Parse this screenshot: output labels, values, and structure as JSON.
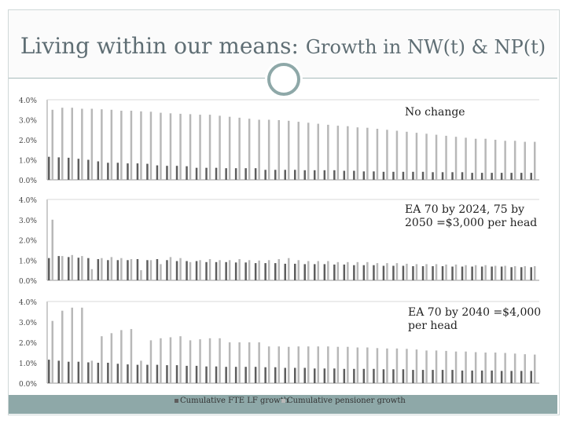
{
  "slide": {
    "title_part1": "Living within our means:",
    "title_part2": "Growth in NW(t) & NP(t)"
  },
  "colors": {
    "lf": "#5e5e5e",
    "pens": "#b8b8b8",
    "accent": "#8ea8a8"
  },
  "legend": {
    "lf_label": "Cumulative FTE LF growth",
    "pens_label": "Cumulative pensioner growth"
  },
  "chart_data": [
    {
      "type": "bar",
      "annotation": "No change",
      "ylim": [
        0,
        4.0
      ],
      "ytick_labels": [
        "4.0%",
        "3.0%",
        "2.0%",
        "1.0%",
        "0.0%"
      ],
      "series": [
        {
          "name": "Cumulative FTE LF growth",
          "values": [
            1.15,
            1.12,
            1.1,
            1.05,
            1.0,
            0.92,
            0.85,
            0.85,
            0.82,
            0.82,
            0.8,
            0.72,
            0.7,
            0.7,
            0.68,
            0.6,
            0.6,
            0.6,
            0.58,
            0.58,
            0.58,
            0.58,
            0.5,
            0.5,
            0.5,
            0.5,
            0.48,
            0.48,
            0.48,
            0.48,
            0.45,
            0.45,
            0.42,
            0.42,
            0.4,
            0.4,
            0.4,
            0.4,
            0.4,
            0.38,
            0.38,
            0.38,
            0.38,
            0.35,
            0.35,
            0.35,
            0.35,
            0.35,
            0.35,
            0.35
          ]
        },
        {
          "name": "Cumulative pensioner growth",
          "values": [
            3.5,
            3.6,
            3.6,
            3.55,
            3.55,
            3.52,
            3.5,
            3.45,
            3.45,
            3.42,
            3.4,
            3.35,
            3.32,
            3.3,
            3.28,
            3.25,
            3.25,
            3.2,
            3.15,
            3.1,
            3.05,
            3.0,
            3.0,
            2.98,
            2.95,
            2.9,
            2.85,
            2.8,
            2.75,
            2.7,
            2.68,
            2.62,
            2.6,
            2.55,
            2.5,
            2.45,
            2.4,
            2.35,
            2.3,
            2.25,
            2.2,
            2.15,
            2.1,
            2.05,
            2.05,
            2.0,
            1.95,
            1.95,
            1.9,
            1.9
          ]
        }
      ]
    },
    {
      "type": "bar",
      "annotation": "EA 70 by 2024, 75 by 2050 =$3,000 per head",
      "ylim": [
        0,
        4.0
      ],
      "ytick_labels": [
        "4.0%",
        "3.0%",
        "2.0%",
        "1.0%",
        "0.0%"
      ],
      "series": [
        {
          "name": "Cumulative FTE LF growth",
          "values": [
            1.1,
            1.2,
            1.15,
            1.12,
            1.1,
            1.05,
            1.0,
            1.0,
            1.0,
            1.05,
            1.0,
            1.05,
            1.0,
            0.95,
            0.95,
            0.95,
            0.9,
            0.9,
            0.9,
            0.88,
            0.88,
            0.85,
            0.85,
            0.85,
            0.82,
            0.82,
            0.8,
            0.8,
            0.8,
            0.78,
            0.78,
            0.75,
            0.75,
            0.75,
            0.72,
            0.72,
            0.72,
            0.7,
            0.7,
            0.7,
            0.7,
            0.68,
            0.68,
            0.68,
            0.68,
            0.68,
            0.68,
            0.65,
            0.65,
            0.65
          ]
        },
        {
          "name": "Cumulative pensioner growth",
          "values": [
            3.0,
            1.2,
            1.25,
            1.2,
            0.55,
            1.1,
            1.15,
            1.1,
            1.05,
            0.5,
            1.0,
            0.8,
            1.15,
            1.1,
            0.9,
            1.0,
            1.05,
            1.0,
            1.0,
            1.05,
            1.0,
            0.98,
            1.0,
            1.05,
            1.1,
            1.0,
            0.95,
            0.95,
            0.95,
            0.9,
            0.9,
            0.9,
            0.9,
            0.85,
            0.85,
            0.85,
            0.82,
            0.8,
            0.8,
            0.8,
            0.78,
            0.78,
            0.75,
            0.75,
            0.75,
            0.72,
            0.72,
            0.7,
            0.7,
            0.7
          ]
        }
      ]
    },
    {
      "type": "bar",
      "annotation": "EA 70 by 2040 =$4,000 per head",
      "ylim": [
        0,
        4.0
      ],
      "ytick_labels": [
        "4.0%",
        "3.0%",
        "2.0%",
        "1.0%",
        "0.0%"
      ],
      "series": [
        {
          "name": "Cumulative FTE LF growth",
          "values": [
            1.15,
            1.1,
            1.05,
            1.05,
            1.02,
            1.0,
            1.0,
            0.95,
            0.92,
            0.9,
            0.9,
            0.9,
            0.88,
            0.88,
            0.85,
            0.85,
            0.82,
            0.82,
            0.8,
            0.8,
            0.8,
            0.8,
            0.78,
            0.78,
            0.75,
            0.75,
            0.75,
            0.72,
            0.72,
            0.72,
            0.7,
            0.7,
            0.7,
            0.7,
            0.68,
            0.68,
            0.68,
            0.65,
            0.65,
            0.65,
            0.65,
            0.65,
            0.62,
            0.62,
            0.62,
            0.62,
            0.6,
            0.6,
            0.6,
            0.6
          ]
        },
        {
          "name": "Cumulative pensioner growth",
          "values": [
            3.05,
            3.55,
            3.7,
            3.7,
            1.1,
            2.3,
            2.45,
            2.6,
            2.65,
            1.1,
            2.1,
            2.2,
            2.25,
            2.3,
            2.1,
            2.15,
            2.2,
            2.2,
            2.0,
            2.0,
            2.0,
            2.0,
            1.8,
            1.8,
            1.78,
            1.8,
            1.8,
            1.8,
            1.8,
            1.78,
            1.78,
            1.75,
            1.75,
            1.72,
            1.7,
            1.7,
            1.68,
            1.65,
            1.6,
            1.6,
            1.58,
            1.55,
            1.55,
            1.52,
            1.5,
            1.5,
            1.48,
            1.45,
            1.42,
            1.4
          ]
        }
      ]
    }
  ]
}
